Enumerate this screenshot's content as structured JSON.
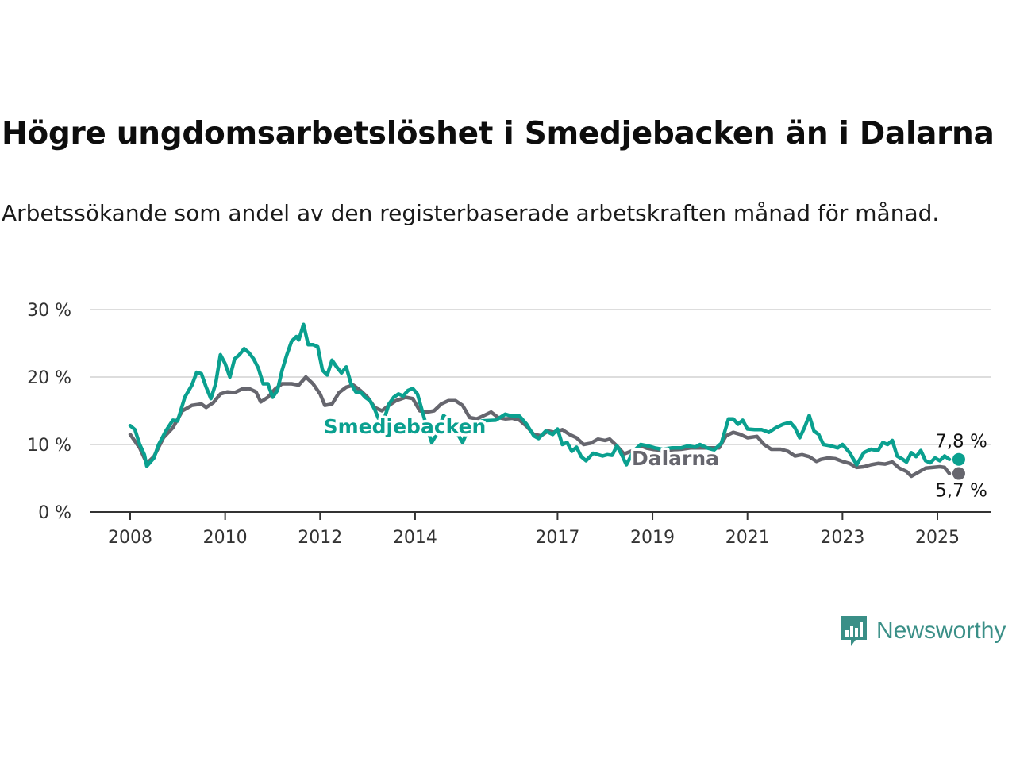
{
  "title": "Högre ungdomsarbetslöshet i Smedjebacken än i Dalarna",
  "subtitle": "Arbetssökande som andel av den registerbaserade arbetskraften månad för månad.",
  "brand": {
    "name": "Newsworthy",
    "color": "#3a8f87",
    "icon": "bar-chart-speech-bubble-icon"
  },
  "colors": {
    "smedjebacken": "#0aa08f",
    "dalarna": "#66666e",
    "grid": "#dddddd",
    "axis": "#333333"
  },
  "chart_data": {
    "type": "line",
    "xlim": [
      2008,
      2025.5
    ],
    "ylim": [
      0,
      30
    ],
    "grid": "horizontal",
    "yticks": [
      {
        "value": 0,
        "label": "0 %"
      },
      {
        "value": 10,
        "label": "10 %"
      },
      {
        "value": 20,
        "label": "20 %"
      },
      {
        "value": 30,
        "label": "30 %"
      }
    ],
    "xticks": [
      {
        "value": 2008,
        "label": "2008"
      },
      {
        "value": 2010,
        "label": "2010"
      },
      {
        "value": 2012,
        "label": "2012"
      },
      {
        "value": 2014,
        "label": "2014"
      },
      {
        "value": 2017,
        "label": "2017"
      },
      {
        "value": 2019,
        "label": "2019"
      },
      {
        "value": 2021,
        "label": "2021"
      },
      {
        "value": 2023,
        "label": "2023"
      },
      {
        "value": 2025,
        "label": "2025"
      }
    ],
    "series": [
      {
        "name": "Smedjebacken",
        "color": "#0aa08f",
        "end_label": "7,8 %",
        "points": [
          [
            2008.0,
            12.8
          ],
          [
            2008.1,
            12.2
          ],
          [
            2008.2,
            10.0
          ],
          [
            2008.3,
            8.5
          ],
          [
            2008.35,
            6.8
          ],
          [
            2008.5,
            8.0
          ],
          [
            2008.6,
            10.0
          ],
          [
            2008.75,
            12.0
          ],
          [
            2008.9,
            13.6
          ],
          [
            2009.0,
            13.5
          ],
          [
            2009.15,
            17.0
          ],
          [
            2009.3,
            18.8
          ],
          [
            2009.4,
            20.7
          ],
          [
            2009.5,
            20.5
          ],
          [
            2009.6,
            18.5
          ],
          [
            2009.7,
            16.8
          ],
          [
            2009.8,
            19.0
          ],
          [
            2009.9,
            23.3
          ],
          [
            2010.0,
            22.0
          ],
          [
            2010.1,
            20.0
          ],
          [
            2010.2,
            22.7
          ],
          [
            2010.3,
            23.3
          ],
          [
            2010.4,
            24.2
          ],
          [
            2010.5,
            23.6
          ],
          [
            2010.6,
            22.7
          ],
          [
            2010.7,
            21.3
          ],
          [
            2010.8,
            19.0
          ],
          [
            2010.9,
            19.0
          ],
          [
            2011.0,
            17.0
          ],
          [
            2011.1,
            18.0
          ],
          [
            2011.2,
            21.0
          ],
          [
            2011.3,
            23.3
          ],
          [
            2011.4,
            25.3
          ],
          [
            2011.5,
            26.0
          ],
          [
            2011.55,
            25.5
          ],
          [
            2011.65,
            27.8
          ],
          [
            2011.75,
            24.8
          ],
          [
            2011.85,
            24.8
          ],
          [
            2011.95,
            24.5
          ],
          [
            2012.05,
            21.0
          ],
          [
            2012.15,
            20.3
          ],
          [
            2012.25,
            22.5
          ],
          [
            2012.35,
            21.5
          ],
          [
            2012.45,
            20.6
          ],
          [
            2012.55,
            21.5
          ],
          [
            2012.65,
            19.0
          ],
          [
            2012.75,
            17.8
          ],
          [
            2012.85,
            17.8
          ],
          [
            2012.95,
            17.0
          ],
          [
            2013.05,
            16.5
          ],
          [
            2013.15,
            15.2
          ],
          [
            2013.25,
            13.5
          ],
          [
            2013.35,
            13.8
          ],
          [
            2013.45,
            16.0
          ],
          [
            2013.55,
            17.0
          ],
          [
            2013.65,
            17.5
          ],
          [
            2013.75,
            17.2
          ],
          [
            2013.85,
            18.0
          ],
          [
            2013.95,
            18.3
          ],
          [
            2014.05,
            17.5
          ],
          [
            2014.15,
            15.0
          ],
          [
            2014.25,
            12.5
          ],
          [
            2014.35,
            10.3
          ],
          [
            2014.45,
            11.5
          ],
          [
            2014.6,
            14.3
          ],
          [
            2014.75,
            13.5
          ],
          [
            2014.9,
            11.5
          ],
          [
            2015.0,
            10.3
          ],
          [
            2015.15,
            12.8
          ],
          [
            2015.4,
            13.5
          ],
          [
            2015.7,
            13.6
          ],
          [
            2015.9,
            14.5
          ],
          [
            2016.0,
            14.3
          ],
          [
            2016.2,
            14.2
          ],
          [
            2016.35,
            13.0
          ],
          [
            2016.5,
            11.3
          ],
          [
            2016.6,
            10.9
          ],
          [
            2016.75,
            12.0
          ],
          [
            2016.9,
            11.5
          ],
          [
            2017.0,
            12.3
          ],
          [
            2017.1,
            10.0
          ],
          [
            2017.2,
            10.3
          ],
          [
            2017.3,
            9.0
          ],
          [
            2017.4,
            9.6
          ],
          [
            2017.5,
            8.2
          ],
          [
            2017.6,
            7.6
          ],
          [
            2017.75,
            8.7
          ],
          [
            2017.85,
            8.5
          ],
          [
            2017.95,
            8.3
          ],
          [
            2018.05,
            8.5
          ],
          [
            2018.15,
            8.4
          ],
          [
            2018.25,
            9.8
          ],
          [
            2018.35,
            8.5
          ],
          [
            2018.45,
            7.0
          ],
          [
            2018.6,
            9.0
          ],
          [
            2018.75,
            10.0
          ],
          [
            2018.9,
            9.8
          ],
          [
            2019.05,
            9.5
          ],
          [
            2019.2,
            9.3
          ],
          [
            2019.4,
            9.5
          ],
          [
            2019.6,
            9.5
          ],
          [
            2019.75,
            9.8
          ],
          [
            2019.9,
            9.6
          ],
          [
            2020.0,
            10.0
          ],
          [
            2020.15,
            9.5
          ],
          [
            2020.3,
            9.2
          ],
          [
            2020.45,
            10.2
          ],
          [
            2020.6,
            13.8
          ],
          [
            2020.7,
            13.8
          ],
          [
            2020.8,
            13.0
          ],
          [
            2020.9,
            13.6
          ],
          [
            2021.0,
            12.3
          ],
          [
            2021.15,
            12.2
          ],
          [
            2021.3,
            12.2
          ],
          [
            2021.45,
            11.8
          ],
          [
            2021.6,
            12.5
          ],
          [
            2021.75,
            13.0
          ],
          [
            2021.9,
            13.3
          ],
          [
            2022.0,
            12.5
          ],
          [
            2022.1,
            11.0
          ],
          [
            2022.2,
            12.5
          ],
          [
            2022.3,
            14.3
          ],
          [
            2022.4,
            12.0
          ],
          [
            2022.5,
            11.5
          ],
          [
            2022.6,
            10.0
          ],
          [
            2022.75,
            9.8
          ],
          [
            2022.9,
            9.5
          ],
          [
            2023.0,
            10.0
          ],
          [
            2023.15,
            8.8
          ],
          [
            2023.3,
            7.0
          ],
          [
            2023.45,
            8.8
          ],
          [
            2023.6,
            9.3
          ],
          [
            2023.75,
            9.1
          ],
          [
            2023.85,
            10.3
          ],
          [
            2023.95,
            10.0
          ],
          [
            2024.05,
            10.6
          ],
          [
            2024.15,
            8.3
          ],
          [
            2024.25,
            7.9
          ],
          [
            2024.35,
            7.4
          ],
          [
            2024.45,
            8.8
          ],
          [
            2024.55,
            8.2
          ],
          [
            2024.65,
            9.1
          ],
          [
            2024.75,
            7.6
          ],
          [
            2024.85,
            7.3
          ],
          [
            2024.95,
            8.0
          ],
          [
            2025.05,
            7.6
          ],
          [
            2025.15,
            8.3
          ],
          [
            2025.25,
            7.8
          ]
        ]
      },
      {
        "name": "Dalarna",
        "color": "#66666e",
        "end_label": "5,7 %",
        "points": [
          [
            2008.0,
            11.5
          ],
          [
            2008.2,
            9.5
          ],
          [
            2008.35,
            7.2
          ],
          [
            2008.5,
            8.2
          ],
          [
            2008.7,
            11.0
          ],
          [
            2008.9,
            12.5
          ],
          [
            2009.1,
            15.0
          ],
          [
            2009.3,
            15.8
          ],
          [
            2009.5,
            16.0
          ],
          [
            2009.6,
            15.5
          ],
          [
            2009.75,
            16.2
          ],
          [
            2009.9,
            17.5
          ],
          [
            2010.05,
            17.8
          ],
          [
            2010.2,
            17.7
          ],
          [
            2010.35,
            18.2
          ],
          [
            2010.5,
            18.3
          ],
          [
            2010.65,
            17.8
          ],
          [
            2010.75,
            16.3
          ],
          [
            2010.9,
            17.0
          ],
          [
            2011.05,
            18.2
          ],
          [
            2011.2,
            19.0
          ],
          [
            2011.4,
            19.0
          ],
          [
            2011.55,
            18.8
          ],
          [
            2011.7,
            20.0
          ],
          [
            2011.85,
            19.0
          ],
          [
            2012.0,
            17.5
          ],
          [
            2012.1,
            15.8
          ],
          [
            2012.25,
            16.0
          ],
          [
            2012.4,
            17.7
          ],
          [
            2012.55,
            18.5
          ],
          [
            2012.7,
            18.8
          ],
          [
            2012.85,
            18.0
          ],
          [
            2013.0,
            17.0
          ],
          [
            2013.15,
            15.5
          ],
          [
            2013.3,
            15.0
          ],
          [
            2013.45,
            15.8
          ],
          [
            2013.6,
            16.5
          ],
          [
            2013.8,
            17.0
          ],
          [
            2013.95,
            16.8
          ],
          [
            2014.1,
            15.0
          ],
          [
            2014.25,
            14.8
          ],
          [
            2014.4,
            15.0
          ],
          [
            2014.55,
            16.0
          ],
          [
            2014.7,
            16.5
          ],
          [
            2014.85,
            16.5
          ],
          [
            2015.0,
            15.8
          ],
          [
            2015.15,
            14.0
          ],
          [
            2015.3,
            13.8
          ],
          [
            2015.45,
            14.3
          ],
          [
            2015.6,
            14.8
          ],
          [
            2015.75,
            14.0
          ],
          [
            2015.9,
            13.8
          ],
          [
            2016.05,
            13.9
          ],
          [
            2016.2,
            13.6
          ],
          [
            2016.35,
            12.7
          ],
          [
            2016.5,
            11.5
          ],
          [
            2016.65,
            11.3
          ],
          [
            2016.8,
            12.0
          ],
          [
            2016.95,
            11.8
          ],
          [
            2017.1,
            12.2
          ],
          [
            2017.25,
            11.5
          ],
          [
            2017.4,
            11.0
          ],
          [
            2017.55,
            10.0
          ],
          [
            2017.7,
            10.2
          ],
          [
            2017.85,
            10.8
          ],
          [
            2018.0,
            10.6
          ],
          [
            2018.1,
            10.8
          ],
          [
            2018.25,
            9.8
          ],
          [
            2018.4,
            8.6
          ],
          [
            2018.55,
            9.0
          ],
          [
            2018.7,
            9.5
          ],
          [
            2018.85,
            9.5
          ],
          [
            2019.0,
            9.3
          ],
          [
            2019.2,
            9.0
          ],
          [
            2019.4,
            9.2
          ],
          [
            2019.6,
            9.3
          ],
          [
            2019.8,
            9.5
          ],
          [
            2020.0,
            9.5
          ],
          [
            2020.2,
            9.5
          ],
          [
            2020.4,
            9.5
          ],
          [
            2020.55,
            11.3
          ],
          [
            2020.7,
            11.8
          ],
          [
            2020.85,
            11.5
          ],
          [
            2021.0,
            11.0
          ],
          [
            2021.2,
            11.2
          ],
          [
            2021.35,
            10.0
          ],
          [
            2021.5,
            9.3
          ],
          [
            2021.7,
            9.3
          ],
          [
            2021.85,
            9.0
          ],
          [
            2022.0,
            8.3
          ],
          [
            2022.15,
            8.5
          ],
          [
            2022.3,
            8.2
          ],
          [
            2022.45,
            7.5
          ],
          [
            2022.55,
            7.8
          ],
          [
            2022.7,
            8.0
          ],
          [
            2022.85,
            7.9
          ],
          [
            2023.0,
            7.5
          ],
          [
            2023.15,
            7.2
          ],
          [
            2023.3,
            6.6
          ],
          [
            2023.45,
            6.7
          ],
          [
            2023.6,
            7.0
          ],
          [
            2023.75,
            7.2
          ],
          [
            2023.9,
            7.1
          ],
          [
            2024.05,
            7.4
          ],
          [
            2024.2,
            6.5
          ],
          [
            2024.35,
            6.0
          ],
          [
            2024.45,
            5.3
          ],
          [
            2024.6,
            5.9
          ],
          [
            2024.75,
            6.5
          ],
          [
            2024.9,
            6.6
          ],
          [
            2025.05,
            6.7
          ],
          [
            2025.15,
            6.6
          ],
          [
            2025.25,
            5.7
          ]
        ]
      }
    ]
  }
}
